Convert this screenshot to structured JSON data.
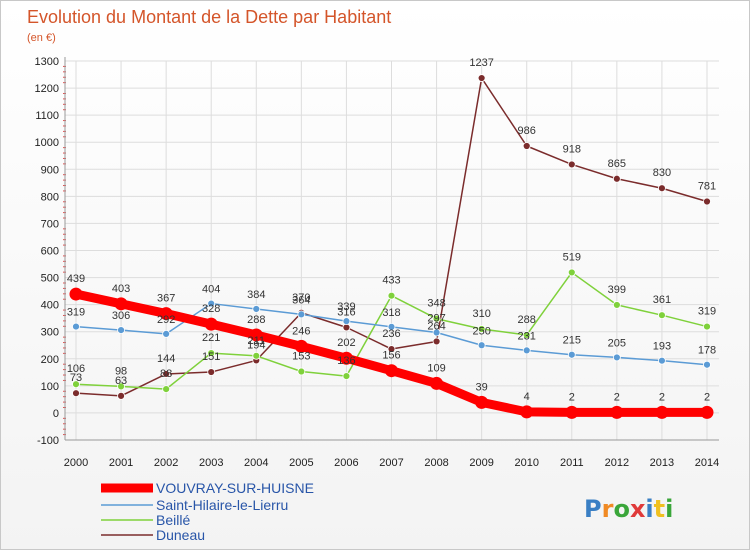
{
  "chart_data": {
    "type": "line",
    "title": "Evolution du Montant de la Dette par Habitant",
    "subtitle": "(en €)",
    "xlabel": "",
    "ylabel": "",
    "categories": [
      "2000",
      "2001",
      "2002",
      "2003",
      "2004",
      "2005",
      "2006",
      "2007",
      "2008",
      "2009",
      "2010",
      "2011",
      "2012",
      "2013",
      "2014"
    ],
    "ylim": [
      -100,
      1300
    ],
    "yticks": [
      -100,
      0,
      100,
      200,
      300,
      400,
      500,
      600,
      700,
      800,
      900,
      1000,
      1100,
      1200,
      1300
    ],
    "grid": true,
    "legend_position": "bottom-left",
    "series": [
      {
        "name": "VOUVRAY-SUR-HUISNE",
        "color": "#ff0000",
        "values": [
          439,
          403,
          367,
          328,
          288,
          246,
          202,
          156,
          109,
          39,
          4,
          2,
          2,
          2,
          2
        ]
      },
      {
        "name": "Saint-Hilaire-le-Lierru",
        "color": "#5b9bd5",
        "values": [
          319,
          306,
          292,
          404,
          384,
          364,
          339,
          318,
          297,
          250,
          231,
          215,
          205,
          193,
          178
        ]
      },
      {
        "name": "Beillé",
        "color": "#7fd13b",
        "values": [
          106,
          98,
          88,
          221,
          211,
          153,
          136,
          433,
          348,
          310,
          288,
          519,
          399,
          361,
          319
        ]
      },
      {
        "name": "Duneau",
        "color": "#7b2c2c",
        "values": [
          73,
          63,
          144,
          151,
          194,
          370,
          316,
          236,
          264,
          1237,
          986,
          918,
          865,
          830,
          781
        ]
      }
    ]
  },
  "logo": {
    "text": "Proxiti",
    "letter_colors": [
      "#3a7fc4",
      "#f08a24",
      "#3aa63a",
      "#e03a3a",
      "#3a7fc4",
      "#f0c020",
      "#3aa63a"
    ]
  }
}
